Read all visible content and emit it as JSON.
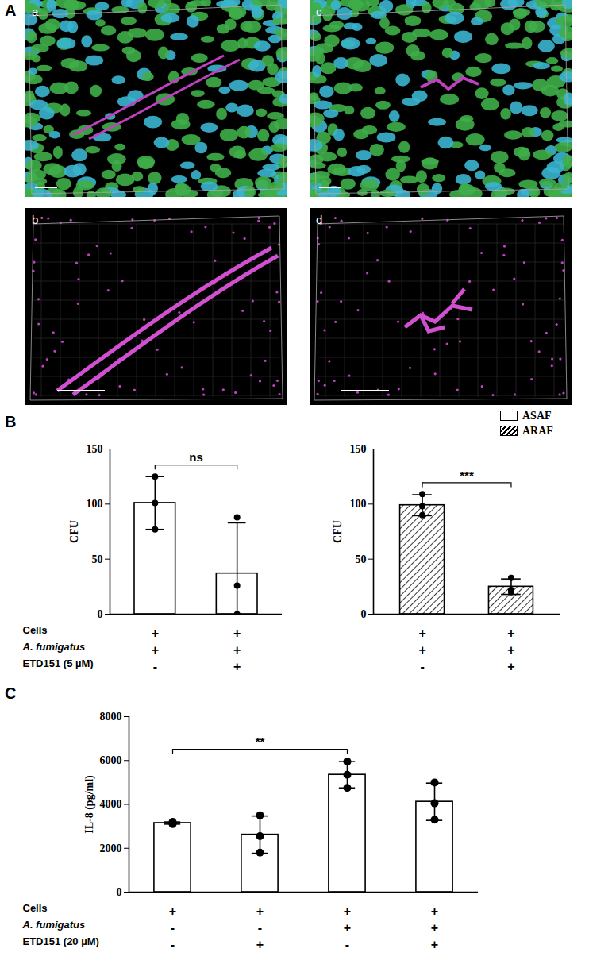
{
  "panel_labels": [
    "A",
    "B",
    "C"
  ],
  "image_panel": {
    "subpanels": [
      "a",
      "b",
      "c",
      "d"
    ]
  },
  "chart_data": [
    {
      "type": "bar",
      "categories": [
        null,
        null
      ],
      "series": [
        {
          "name": "ASAF",
          "color": "#ffffff",
          "marker": "plain",
          "values": [
            101,
            37
          ],
          "errors": [
            24,
            46
          ],
          "points": [
            [
              125,
              101,
              77
            ],
            [
              88,
              26,
              0
            ]
          ]
        }
      ],
      "y_label": "CFU",
      "ylim": [
        0,
        150
      ],
      "yticks": [
        0,
        50,
        100,
        150
      ],
      "condition_labels": [
        "Cells",
        "A. fumigatus",
        "ETD151 (5 µM)"
      ],
      "condition_signs": [
        [
          "+",
          "+"
        ],
        [
          "+",
          "+"
        ],
        [
          "-",
          "+"
        ]
      ],
      "comparisons": [
        {
          "from": 0,
          "to": 1,
          "label": "ns"
        }
      ],
      "legend": "top-right"
    },
    {
      "type": "bar",
      "categories": [
        null,
        null
      ],
      "series": [
        {
          "name": "ARAF",
          "color": "#ffffff",
          "marker": "hatched",
          "values": [
            99,
            25
          ],
          "errors": [
            9.5,
            7
          ],
          "points": [
            [
              109,
              98,
              90
            ],
            [
              33,
              22,
              20
            ]
          ]
        }
      ],
      "y_label": "CFU",
      "ylim": [
        0,
        150
      ],
      "yticks": [
        0,
        50,
        100,
        150
      ],
      "condition_signs": [
        [
          "+",
          "+"
        ],
        [
          "+",
          "+"
        ],
        [
          "-",
          "+"
        ]
      ],
      "comparisons": [
        {
          "from": 0,
          "to": 1,
          "label": "***"
        }
      ],
      "legend": "top-right"
    },
    {
      "type": "bar",
      "categories": [
        null,
        null,
        null,
        null
      ],
      "series": [
        {
          "name": "IL-8",
          "color": "#ffffff",
          "marker": "plain",
          "values": [
            3150,
            2620,
            5350,
            4120
          ],
          "errors": [
            50,
            850,
            600,
            850
          ],
          "points": [
            [
              3200,
              3150,
              3100
            ],
            [
              3500,
              2550,
              1800
            ],
            [
              5950,
              5350,
              4750
            ],
            [
              5000,
              4050,
              3300
            ]
          ]
        }
      ],
      "y_label": "IL-8 (pg/ml)",
      "ylim": [
        0,
        8000
      ],
      "yticks": [
        0,
        2000,
        4000,
        6000,
        8000
      ],
      "condition_labels": [
        "Cells",
        "A. fumigatus",
        "ETD151 (20 µM)"
      ],
      "condition_signs": [
        [
          "+",
          "+",
          "+",
          "+"
        ],
        [
          "-",
          "-",
          "+",
          "+"
        ],
        [
          "-",
          "+",
          "-",
          "+"
        ]
      ],
      "comparisons": [
        {
          "from": 0,
          "to": 2,
          "label": "**"
        }
      ]
    }
  ]
}
